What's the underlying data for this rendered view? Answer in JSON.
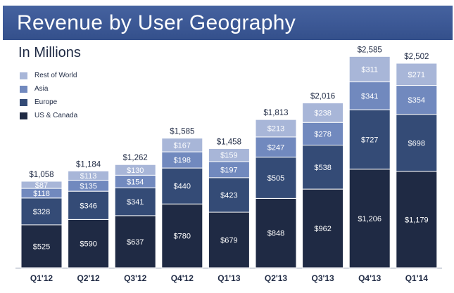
{
  "chart_data": {
    "type": "bar",
    "stacked": true,
    "title": "Revenue by User Geography",
    "subtitle": "In Millions",
    "xlabel": "",
    "ylabel": "",
    "ylim": [
      0,
      2600
    ],
    "legend_position": "top-left",
    "categories": [
      "Q1'12",
      "Q2'12",
      "Q3'12",
      "Q4'12",
      "Q1'13",
      "Q2'13",
      "Q3'13",
      "Q4'13",
      "Q1'14"
    ],
    "totals": [
      "$1,058",
      "$1,184",
      "$1,262",
      "$1,585",
      "$1,458",
      "$1,813",
      "$2,016",
      "$2,585",
      "$2,502"
    ],
    "series": [
      {
        "name": "US & Canada",
        "color": "#1f2a44",
        "values": [
          525,
          590,
          637,
          780,
          679,
          848,
          962,
          1206,
          1179
        ],
        "labels": [
          "$525",
          "$590",
          "$637",
          "$780",
          "$679",
          "$848",
          "$962",
          "$1,206",
          "$1,179"
        ]
      },
      {
        "name": "Europe",
        "color": "#344b76",
        "values": [
          328,
          346,
          341,
          440,
          423,
          505,
          538,
          727,
          698
        ],
        "labels": [
          "$328",
          "$346",
          "$341",
          "$440",
          "$423",
          "$505",
          "$538",
          "$727",
          "$698"
        ]
      },
      {
        "name": "Asia",
        "color": "#7189be",
        "values": [
          118,
          135,
          154,
          198,
          197,
          247,
          278,
          341,
          354
        ],
        "labels": [
          "$118",
          "$135",
          "$154",
          "$198",
          "$197",
          "$247",
          "$278",
          "$341",
          "$354"
        ]
      },
      {
        "name": "Rest of World",
        "color": "#a8b6d8",
        "values": [
          87,
          113,
          130,
          167,
          159,
          213,
          238,
          311,
          271
        ],
        "labels": [
          "$87",
          "$113",
          "$130",
          "$167",
          "$159",
          "$213",
          "$238",
          "$311",
          "$271"
        ]
      }
    ]
  },
  "legend": {
    "items": [
      {
        "label": "Rest of World",
        "color": "#a8b6d8"
      },
      {
        "label": "Asia",
        "color": "#7189be"
      },
      {
        "label": "Europe",
        "color": "#344b76"
      },
      {
        "label": "US & Canada",
        "color": "#1f2a44"
      }
    ]
  }
}
